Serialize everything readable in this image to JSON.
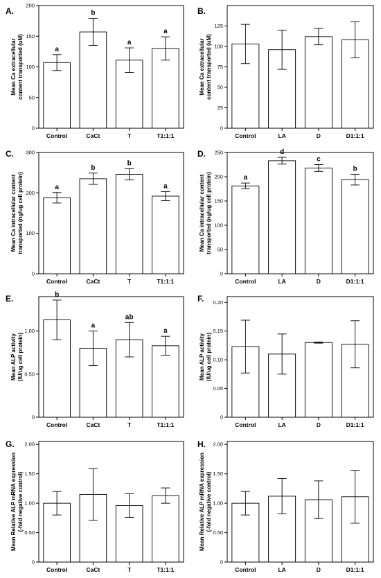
{
  "chart_data": [
    {
      "panel": "A.",
      "type": "bar",
      "ylabel": [
        "Mean Ca extracellular",
        "content transported (uM)"
      ],
      "categories": [
        "Control",
        "CaCt",
        "T",
        "T1:1:1"
      ],
      "values": [
        107,
        157,
        111,
        130
      ],
      "errors": [
        13,
        22,
        20,
        19
      ],
      "letters": [
        "a",
        "b",
        "a",
        "a"
      ],
      "ylim": [
        0,
        200
      ],
      "yticks": [
        0,
        50,
        100,
        150,
        200
      ],
      "tick_labels": [
        "0",
        "50",
        "100",
        "150",
        "200"
      ]
    },
    {
      "panel": "B.",
      "type": "bar",
      "ylabel": [
        "Mean Ca extracellular",
        "content transported (uM)"
      ],
      "categories": [
        "Control",
        "LA",
        "D",
        "D1:1:1"
      ],
      "values": [
        103,
        96,
        112,
        108
      ],
      "errors": [
        24,
        24,
        10,
        22
      ],
      "letters": [
        "",
        "",
        "",
        ""
      ],
      "ylim": [
        0,
        150
      ],
      "yticks": [
        0,
        25,
        50,
        75,
        100,
        125
      ],
      "tick_labels": [
        "0",
        "25",
        "50",
        "75",
        "100",
        "125"
      ]
    },
    {
      "panel": "C.",
      "type": "bar",
      "ylabel": [
        "Mean Ca intracellular content",
        "transported (ng/ug cell protein)"
      ],
      "categories": [
        "Control",
        "CaCt",
        "T",
        "T1:1:1"
      ],
      "values": [
        188,
        235,
        246,
        192
      ],
      "errors": [
        13,
        14,
        14,
        11
      ],
      "letters": [
        "a",
        "b",
        "b",
        "a"
      ],
      "ylim": [
        0,
        300
      ],
      "yticks": [
        0,
        100,
        200,
        300
      ],
      "tick_labels": [
        "0",
        "100",
        "200",
        "300"
      ]
    },
    {
      "panel": "D.",
      "type": "bar",
      "ylabel": [
        "Mean Ca intracellular content",
        "transported (ng/ug cell protein)"
      ],
      "categories": [
        "Control",
        "LA",
        "D",
        "D1:1:1"
      ],
      "values": [
        181,
        233,
        218,
        194
      ],
      "errors": [
        6,
        7,
        7,
        11
      ],
      "letters": [
        "a",
        "d",
        "c",
        "b"
      ],
      "ylim": [
        0,
        250
      ],
      "yticks": [
        0,
        50,
        100,
        150,
        200,
        250
      ],
      "tick_labels": [
        "0",
        "50",
        "100",
        "150",
        "200",
        "250"
      ]
    },
    {
      "panel": "E.",
      "type": "bar",
      "ylabel": [
        "Mean ALP activity",
        "(IU/ug cell protein)"
      ],
      "categories": [
        "Control",
        "CaCt",
        "T",
        "T1:1:1"
      ],
      "values": [
        1.13,
        0.8,
        0.9,
        0.83
      ],
      "errors": [
        0.23,
        0.2,
        0.2,
        0.11
      ],
      "letters": [
        "b",
        "a",
        "ab",
        "a"
      ],
      "ylim": [
        0,
        1.4
      ],
      "yticks": [
        0,
        0.5,
        1.0
      ],
      "tick_labels": [
        "0",
        "0.50",
        "1.00"
      ]
    },
    {
      "panel": "F.",
      "type": "bar",
      "ylabel": [
        "Mean ALP activity",
        "(IU/ug cell protein)"
      ],
      "categories": [
        "Control",
        "LA",
        "D",
        "D1:1:1"
      ],
      "values": [
        0.123,
        0.11,
        0.13,
        0.127
      ],
      "errors": [
        0.046,
        0.035,
        0.001,
        0.041
      ],
      "letters": [
        "",
        "",
        "",
        ""
      ],
      "ylim": [
        0,
        0.21
      ],
      "yticks": [
        0,
        0.05,
        0.1,
        0.15,
        0.2
      ],
      "tick_labels": [
        "0",
        "0.05",
        "0.10",
        "0.15",
        "0.20"
      ]
    },
    {
      "panel": "G.",
      "type": "bar",
      "ylabel": [
        "Mean Relative ALP mRNA expression",
        "(-fold negative control)"
      ],
      "categories": [
        "Control",
        "CaCt",
        "T",
        "T1:1:1"
      ],
      "values": [
        1.0,
        1.15,
        0.96,
        1.13
      ],
      "errors": [
        0.2,
        0.44,
        0.2,
        0.13
      ],
      "letters": [
        "",
        "",
        "",
        ""
      ],
      "ylim": [
        0,
        2.05
      ],
      "yticks": [
        0,
        0.5,
        1.0,
        1.5,
        2.0
      ],
      "tick_labels": [
        "0",
        "0.50",
        "1.00",
        "1.50",
        "2.00"
      ]
    },
    {
      "panel": "H.",
      "type": "bar",
      "ylabel": [
        "Mean Relative ALP mRNA expression",
        "(-fold negative control)"
      ],
      "categories": [
        "Control",
        "LA",
        "D",
        "D1:1:1"
      ],
      "values": [
        1.0,
        1.12,
        1.06,
        1.11
      ],
      "errors": [
        0.2,
        0.3,
        0.32,
        0.45
      ],
      "letters": [
        "",
        "",
        "",
        ""
      ],
      "ylim": [
        0,
        2.05
      ],
      "yticks": [
        0,
        0.5,
        1.0,
        1.5,
        2.0
      ],
      "tick_labels": [
        "0",
        "0.50",
        "1.00",
        "1.50",
        "2.00"
      ]
    }
  ]
}
